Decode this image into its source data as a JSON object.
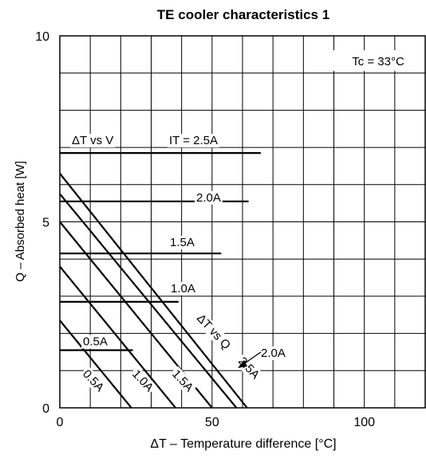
{
  "chart_data": {
    "type": "line",
    "title": "TE cooler characteristics 1",
    "xlabel": "ΔT – Temperature difference [°C]",
    "ylabel": "Q – Absorbed heat [W]",
    "xlim": [
      0,
      120
    ],
    "ylim": [
      0,
      10
    ],
    "x_ticks": [
      "0",
      "50",
      "100"
    ],
    "x_tick_values": [
      0,
      50,
      100
    ],
    "y_ticks": [
      "0",
      "5",
      "10"
    ],
    "y_tick_values": [
      0,
      5,
      10
    ],
    "grid": true,
    "condition_label": "Tc = 33°C",
    "group_labels": {
      "dt_vs_v": "ΔT vs V",
      "dt_vs_q": "ΔT vs Q"
    },
    "dt_vs_v_series": [
      {
        "name": "IT = 2.5A",
        "value": 6.85,
        "x_end": 66
      },
      {
        "name": "2.0A",
        "value": 5.55,
        "x_end": 62
      },
      {
        "name": "1.5A",
        "value": 4.15,
        "x_end": 53
      },
      {
        "name": "1.0A",
        "value": 2.85,
        "x_end": 39
      },
      {
        "name": "0.5A",
        "value": 1.55,
        "x_end": 24
      }
    ],
    "dt_vs_q_series": [
      {
        "name": "0.5A",
        "x": [
          0,
          23.5
        ],
        "y": [
          2.35,
          0
        ]
      },
      {
        "name": "1.0A",
        "x": [
          0,
          38
        ],
        "y": [
          3.8,
          0
        ]
      },
      {
        "name": "1.5A",
        "x": [
          0,
          50
        ],
        "y": [
          5.0,
          0
        ]
      },
      {
        "name": "2.0A",
        "x": [
          0,
          58
        ],
        "y": [
          5.75,
          0
        ]
      },
      {
        "name": "2.5A",
        "x": [
          0,
          61.5
        ],
        "y": [
          6.3,
          0
        ]
      }
    ]
  }
}
